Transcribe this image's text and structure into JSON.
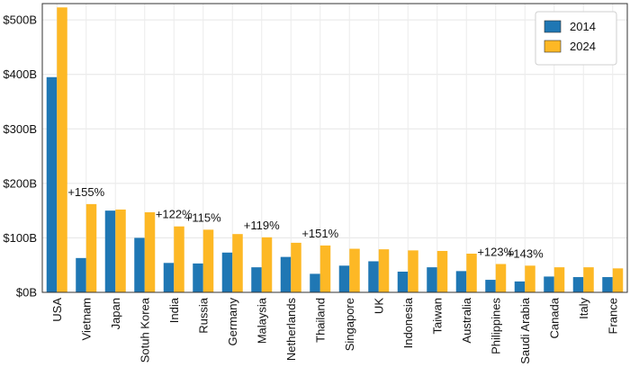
{
  "chart_data": {
    "type": "bar",
    "categories": [
      "USA",
      "Vietnam",
      "Japan",
      "Sotuh Korea",
      "India",
      "Russia",
      "Germany",
      "Malaysia",
      "Netherlands",
      "Thailand",
      "Singapore",
      "UK",
      "Indonesia",
      "Taiwan",
      "Australia",
      "Philippines",
      "Saudi Arabia",
      "Canada",
      "Italy",
      "France"
    ],
    "series": [
      {
        "name": "2014",
        "color": "#1f77b4",
        "values": [
          395,
          63,
          150,
          100,
          54,
          53,
          73,
          46,
          65,
          34,
          49,
          57,
          38,
          46,
          39,
          23,
          20,
          29,
          28,
          28
        ]
      },
      {
        "name": "2024",
        "color": "#fdb825",
        "values": [
          523,
          162,
          152,
          147,
          121,
          115,
          107,
          101,
          91,
          86,
          80,
          79,
          77,
          76,
          71,
          52,
          49,
          46,
          46,
          44
        ]
      }
    ],
    "annotations": [
      {
        "category": "Vietnam",
        "text": "+155%"
      },
      {
        "category": "India",
        "text": "+122%"
      },
      {
        "category": "Russia",
        "text": "+115%"
      },
      {
        "category": "Malaysia",
        "text": "+119%"
      },
      {
        "category": "Thailand",
        "text": "+151%"
      },
      {
        "category": "Philippines",
        "text": "+123%"
      },
      {
        "category": "Saudi Arabia",
        "text": "+143%"
      }
    ],
    "yticks": [
      0,
      100,
      200,
      300,
      400,
      500
    ],
    "ytick_labels": [
      "$0B",
      "$100B",
      "$200B",
      "$300B",
      "$400B",
      "$500B"
    ],
    "ylim": [
      0,
      530
    ],
    "title": "",
    "xlabel": "",
    "ylabel": "",
    "grid": true,
    "legend_position": "top-right"
  }
}
